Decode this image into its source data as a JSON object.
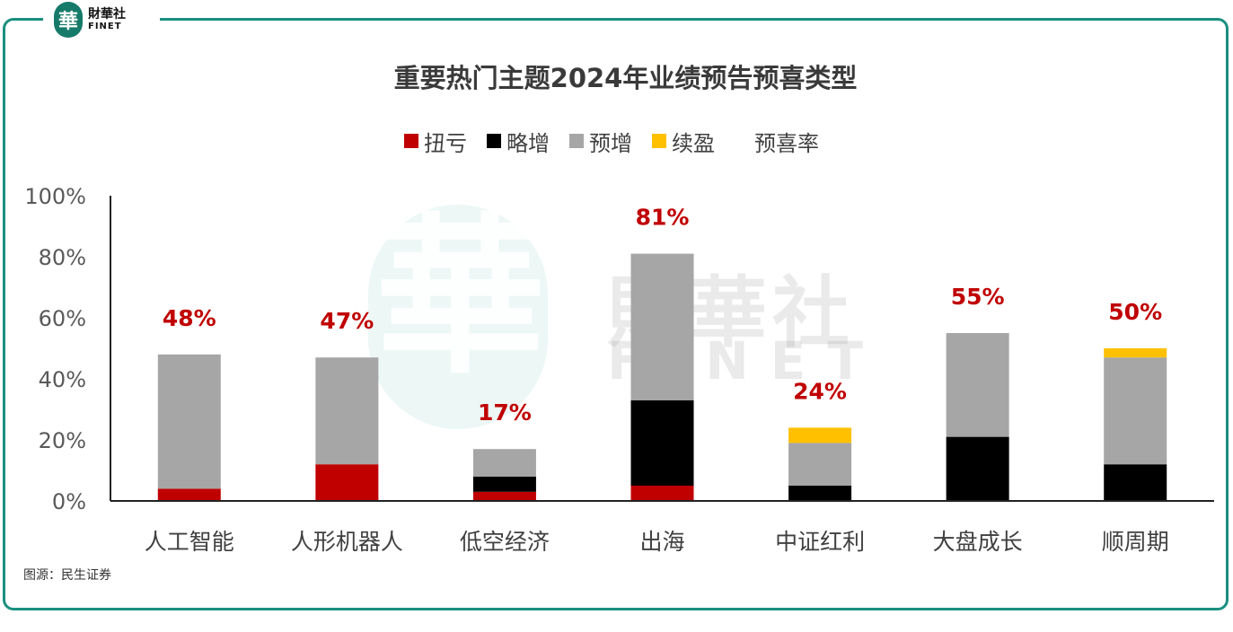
{
  "logo": {
    "mark": "華",
    "cn": "財華社",
    "en": "FINET"
  },
  "watermark": {
    "mark": "華",
    "cn": "財華社",
    "en": "FINET"
  },
  "source": "图源：民生证券",
  "colors": {
    "扭亏": "#c00000",
    "略增": "#000000",
    "预增": "#a6a6a6",
    "续盈": "#ffc000",
    "rate": "#c00000",
    "frame": "#1b8f7f"
  },
  "chart_data": {
    "type": "bar",
    "stacked": true,
    "title": "重要热门主题2024年业绩预告预喜类型",
    "legend": [
      "扭亏",
      "略增",
      "预增",
      "续盈",
      "预喜率"
    ],
    "categories": [
      "人工智能",
      "人形机器人",
      "低空经济",
      "出海",
      "中证红利",
      "大盘成长",
      "顺周期"
    ],
    "series": [
      {
        "name": "扭亏",
        "values": [
          4,
          12,
          3,
          5,
          0,
          0,
          0
        ]
      },
      {
        "name": "略增",
        "values": [
          0,
          0,
          5,
          28,
          5,
          21,
          12
        ]
      },
      {
        "name": "预增",
        "values": [
          44,
          35,
          9,
          48,
          14,
          34,
          35
        ]
      },
      {
        "name": "续盈",
        "values": [
          0,
          0,
          0,
          0,
          5,
          0,
          3
        ]
      }
    ],
    "rate_labels": [
      "48%",
      "47%",
      "17%",
      "81%",
      "24%",
      "55%",
      "50%"
    ],
    "ylim": [
      0,
      100
    ],
    "yticks": [
      "0%",
      "20%",
      "40%",
      "60%",
      "80%",
      "100%"
    ]
  }
}
